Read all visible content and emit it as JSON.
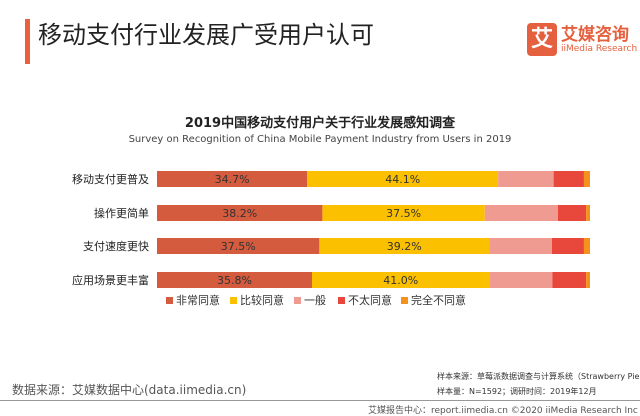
{
  "header": {
    "title": "移动支付行业发展广受用户认可",
    "logo_mark": "艾",
    "logo_cn": "艾媒咨询",
    "logo_en": "iiMedia Research"
  },
  "chart_data": {
    "type": "bar",
    "orientation": "horizontal-stacked-100",
    "title": "2019中国移动支付用户关于行业发展感知调查",
    "subtitle": "Survey on Recognition of China Mobile Payment Industry from Users in 2019",
    "categories": [
      "移动支付更普及",
      "操作更简单",
      "支付速度更快",
      "应用场景更丰富"
    ],
    "series": [
      {
        "name": "非常同意",
        "color": "#d45b3e",
        "values": [
          34.7,
          38.2,
          37.5,
          35.8
        ],
        "labels": [
          "34.7%",
          "38.2%",
          "37.5%",
          "35.8%"
        ]
      },
      {
        "name": "比较同意",
        "color": "#fbc000",
        "values": [
          44.1,
          37.5,
          39.2,
          41.0
        ],
        "labels": [
          "44.1%",
          "37.5%",
          "39.2%",
          "41.0%"
        ]
      },
      {
        "name": "一般",
        "color": "#f09b92",
        "values": [
          12.8,
          16.9,
          14.5,
          14.5
        ]
      },
      {
        "name": "不太同意",
        "color": "#e8473b",
        "values": [
          7.0,
          6.5,
          7.4,
          7.8
        ]
      },
      {
        "name": "完全不同意",
        "color": "#f5921e",
        "values": [
          1.4,
          0.9,
          1.4,
          0.9
        ]
      }
    ],
    "xlim": [
      0,
      100
    ],
    "legend": "bottom",
    "grid": false
  },
  "footer": {
    "source": "数据来源：艾媒数据中心(data.iimedia.cn)",
    "sample_source": "样本来源：草莓派数据调查与计算系统（Strawberry Pie）",
    "sample_size": "样本量：N=1592；调研时间：2019年12月",
    "copyright": "艾媒报告中心：report.iimedia.cn  ©2020  iiMedia Research Inc"
  }
}
